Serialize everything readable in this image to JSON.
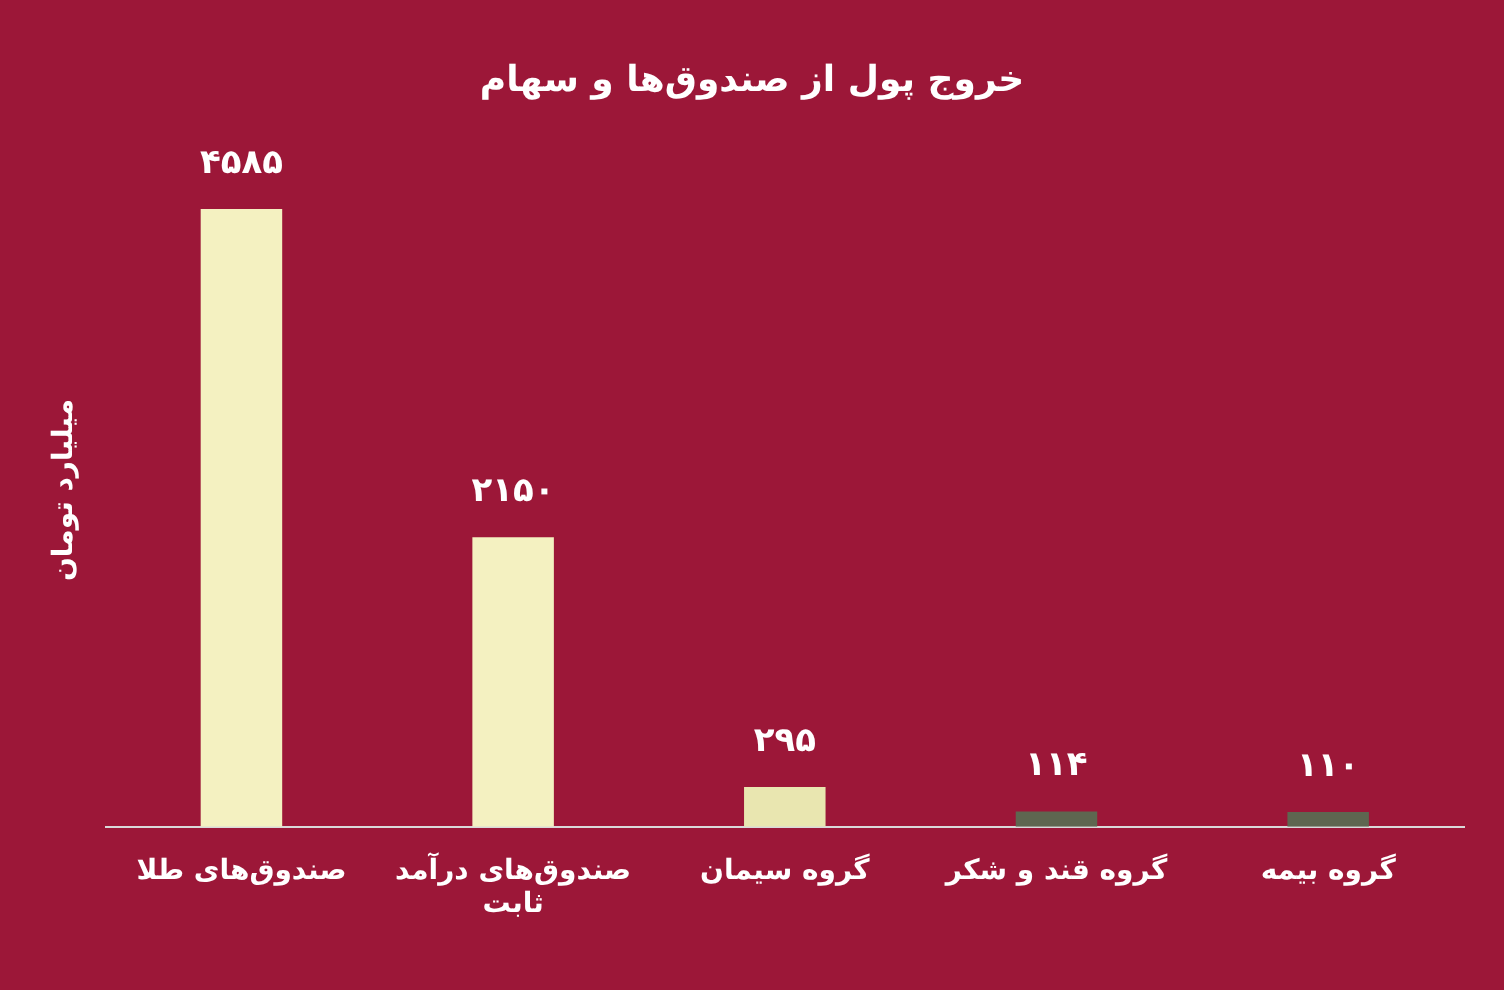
{
  "chart_data": {
    "type": "bar",
    "title": "خروج پول از صندوق‌ها و سهام",
    "ylabel": "میلیارد تومان",
    "categories": [
      "صندوق‌های طلا",
      "صندوق‌های درآمد ثابت",
      "گروه سیمان",
      "گروه قند و شکر",
      "گروه بیمه"
    ],
    "values": [
      4585,
      2150,
      295,
      114,
      110
    ],
    "colors": [
      "#f4f1c1",
      "#f4f1c1",
      "#e9e6b0",
      "#5e6650",
      "#5e6650"
    ],
    "value_labels": [
      "۴۵۸۵",
      "۲۱۵۰",
      "۲۹۵",
      "۱۱۴",
      "۱۱۰"
    ],
    "grid": false,
    "legend": false
  }
}
